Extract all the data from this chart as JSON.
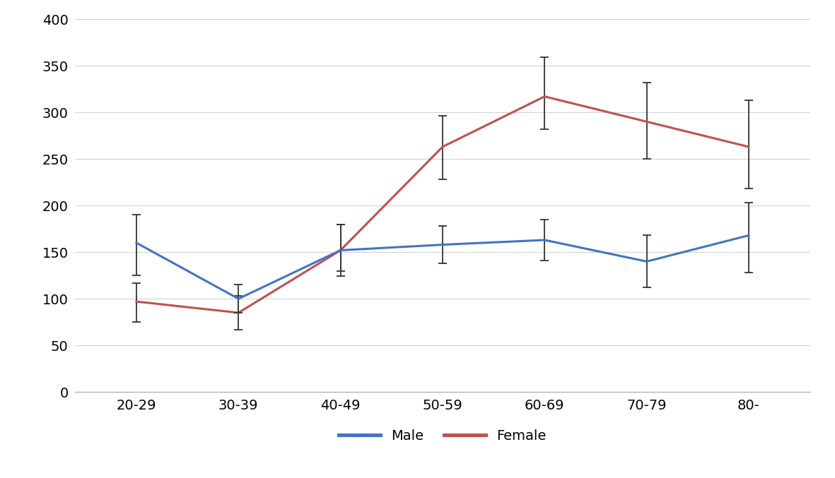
{
  "categories": [
    "20-29",
    "30-39",
    "40-49",
    "50-59",
    "60-69",
    "70-79",
    "80-"
  ],
  "male_values": [
    160,
    100,
    152,
    158,
    163,
    140,
    168
  ],
  "male_err_upper": [
    30,
    15,
    28,
    20,
    22,
    28,
    35
  ],
  "male_err_lower": [
    35,
    15,
    22,
    20,
    22,
    28,
    40
  ],
  "female_values": [
    97,
    85,
    152,
    263,
    317,
    290,
    263
  ],
  "female_err_upper": [
    20,
    18,
    28,
    33,
    42,
    42,
    50
  ],
  "female_err_lower": [
    22,
    18,
    28,
    35,
    35,
    40,
    45
  ],
  "male_color": "#4472c4",
  "female_color": "#c0504d",
  "line_width": 2.2,
  "ylim": [
    0,
    400
  ],
  "yticks": [
    0,
    50,
    100,
    150,
    200,
    250,
    300,
    350,
    400
  ],
  "legend_labels": [
    "Male",
    "Female"
  ],
  "background_color": "#ffffff",
  "grid_color": "#d3d3d3",
  "capsize": 4,
  "elinewidth": 1.3,
  "ecolor": "#333333",
  "tick_fontsize": 14,
  "legend_fontsize": 14
}
